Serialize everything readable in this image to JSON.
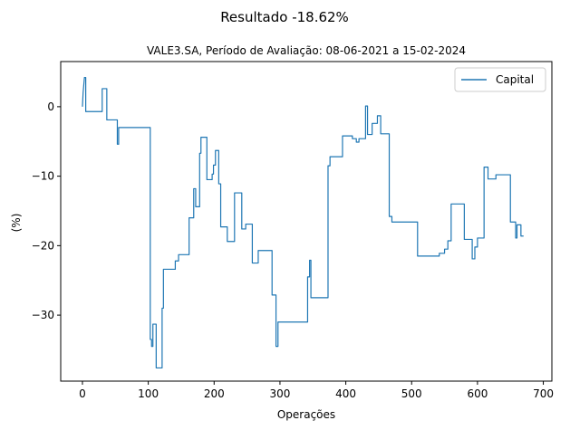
{
  "chart_data": {
    "type": "line",
    "suptitle": "Resultado -18.62%",
    "title": "VALE3.SA, Período de Avaliação: 08-06-2021 a 15-02-2024",
    "xlabel": "Operações",
    "ylabel": "(%)",
    "xlim": [
      -33,
      713
    ],
    "ylim": [
      -39.5,
      6.5
    ],
    "xticks": [
      0,
      100,
      200,
      300,
      400,
      500,
      600,
      700
    ],
    "yticks": [
      0,
      -10,
      -20,
      -30
    ],
    "xtick_labels": [
      "0",
      "100",
      "200",
      "300",
      "400",
      "500",
      "600",
      "700"
    ],
    "ytick_labels": [
      "0",
      "−10",
      "−20",
      "−30"
    ],
    "grid": false,
    "legend_position": "top-right",
    "series": [
      {
        "name": "Capital",
        "color": "#1f77b4",
        "points": [
          [
            0,
            0
          ],
          [
            1,
            2
          ],
          [
            3,
            4.2
          ],
          [
            5,
            4.2
          ],
          [
            5,
            -0.7
          ],
          [
            30,
            -0.7
          ],
          [
            30,
            2.6
          ],
          [
            37,
            2.6
          ],
          [
            37,
            -1.9
          ],
          [
            53,
            -1.9
          ],
          [
            53,
            -5.4
          ],
          [
            55,
            -5.4
          ],
          [
            55,
            -3
          ],
          [
            103,
            -3
          ],
          [
            103,
            -33.5
          ],
          [
            105,
            -33.5
          ],
          [
            105,
            -34.5
          ],
          [
            107,
            -34.5
          ],
          [
            107,
            -31.3
          ],
          [
            112,
            -31.3
          ],
          [
            112,
            -37.6
          ],
          [
            121,
            -37.6
          ],
          [
            121,
            -29
          ],
          [
            123,
            -29
          ],
          [
            123,
            -23.4
          ],
          [
            141,
            -23.4
          ],
          [
            141,
            -22.2
          ],
          [
            146,
            -22.2
          ],
          [
            146,
            -21.3
          ],
          [
            162,
            -21.3
          ],
          [
            162,
            -16
          ],
          [
            169,
            -16
          ],
          [
            169,
            -11.8
          ],
          [
            172,
            -11.8
          ],
          [
            172,
            -14.4
          ],
          [
            178,
            -14.4
          ],
          [
            178,
            -6.7
          ],
          [
            180,
            -6.7
          ],
          [
            180,
            -4.4
          ],
          [
            189,
            -4.4
          ],
          [
            189,
            -10.5
          ],
          [
            197,
            -10.5
          ],
          [
            197,
            -9.7
          ],
          [
            199,
            -9.7
          ],
          [
            199,
            -8.4
          ],
          [
            202,
            -8.4
          ],
          [
            202,
            -6.3
          ],
          [
            207,
            -6.3
          ],
          [
            207,
            -11.1
          ],
          [
            210,
            -11.1
          ],
          [
            210,
            -17.3
          ],
          [
            220,
            -17.3
          ],
          [
            220,
            -19.4
          ],
          [
            231,
            -19.4
          ],
          [
            231,
            -12.4
          ],
          [
            242,
            -12.4
          ],
          [
            242,
            -17.6
          ],
          [
            248,
            -17.6
          ],
          [
            248,
            -16.9
          ],
          [
            258,
            -16.9
          ],
          [
            258,
            -22.5
          ],
          [
            267,
            -22.5
          ],
          [
            267,
            -20.7
          ],
          [
            288,
            -20.7
          ],
          [
            288,
            -27.1
          ],
          [
            294,
            -27.1
          ],
          [
            294,
            -34.5
          ],
          [
            297,
            -34.5
          ],
          [
            297,
            -31
          ],
          [
            342,
            -31
          ],
          [
            342,
            -24.5
          ],
          [
            345,
            -24.5
          ],
          [
            345,
            -22.1
          ],
          [
            347,
            -22.1
          ],
          [
            347,
            -27.5
          ],
          [
            373,
            -27.5
          ],
          [
            373,
            -8.5
          ],
          [
            376,
            -8.5
          ],
          [
            376,
            -7.2
          ],
          [
            395,
            -7.2
          ],
          [
            395,
            -4.2
          ],
          [
            410,
            -4.2
          ],
          [
            410,
            -4.6
          ],
          [
            416,
            -4.6
          ],
          [
            416,
            -5.1
          ],
          [
            420,
            -5.1
          ],
          [
            420,
            -4.6
          ],
          [
            430,
            -4.6
          ],
          [
            430,
            0.1
          ],
          [
            433,
            0.1
          ],
          [
            433,
            -4
          ],
          [
            440,
            -4
          ],
          [
            440,
            -2.4
          ],
          [
            448,
            -2.4
          ],
          [
            448,
            -1.3
          ],
          [
            453,
            -1.3
          ],
          [
            453,
            -3.9
          ],
          [
            466,
            -3.9
          ],
          [
            466,
            -15.8
          ],
          [
            470,
            -15.8
          ],
          [
            470,
            -16.6
          ],
          [
            509,
            -16.6
          ],
          [
            509,
            -21.5
          ],
          [
            542,
            -21.5
          ],
          [
            542,
            -21.1
          ],
          [
            550,
            -21.1
          ],
          [
            550,
            -20.5
          ],
          [
            555,
            -20.5
          ],
          [
            555,
            -19.3
          ],
          [
            560,
            -19.3
          ],
          [
            560,
            -14
          ],
          [
            580,
            -14
          ],
          [
            580,
            -19.1
          ],
          [
            592,
            -19.1
          ],
          [
            592,
            -21.9
          ],
          [
            596,
            -21.9
          ],
          [
            596,
            -20.2
          ],
          [
            600,
            -20.2
          ],
          [
            600,
            -18.9
          ],
          [
            610,
            -18.9
          ],
          [
            610,
            -8.7
          ],
          [
            616,
            -8.7
          ],
          [
            616,
            -10.4
          ],
          [
            628,
            -10.4
          ],
          [
            628,
            -9.8
          ],
          [
            650,
            -9.8
          ],
          [
            650,
            -16.6
          ],
          [
            658,
            -16.6
          ],
          [
            658,
            -18.9
          ],
          [
            660,
            -18.9
          ],
          [
            660,
            -17
          ],
          [
            666,
            -17
          ],
          [
            666,
            -18.62
          ],
          [
            670,
            -18.62
          ]
        ]
      }
    ]
  }
}
